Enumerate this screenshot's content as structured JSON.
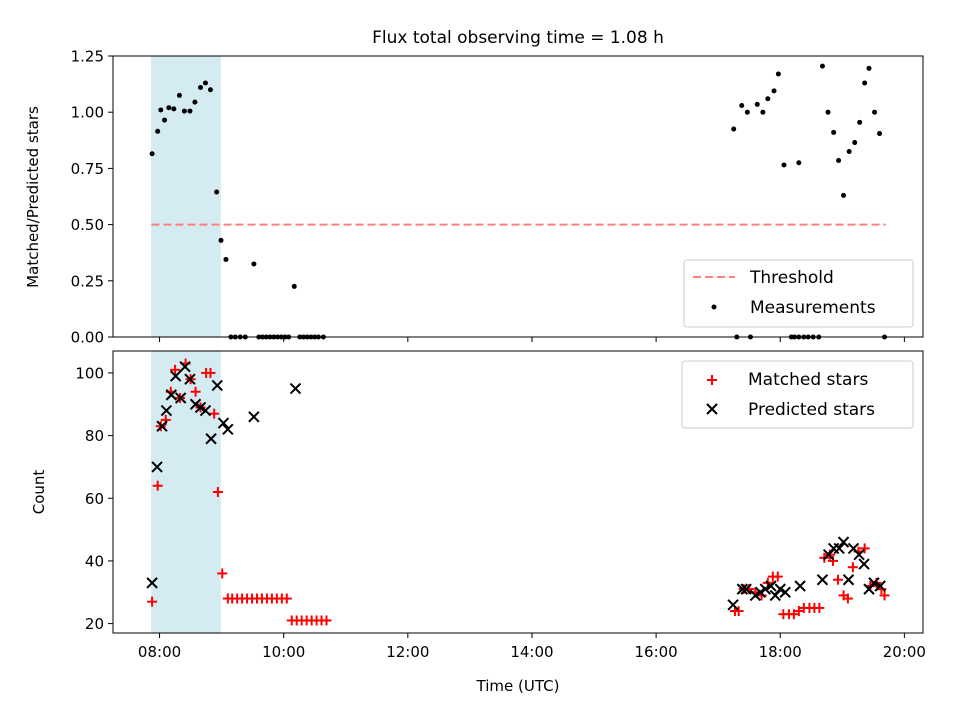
{
  "title": "Flux total observing time = 1.08 h",
  "colors": {
    "shade": "#add8e6",
    "threshold": "#ff7f7f",
    "matched": "#ff0000",
    "predicted": "#000000",
    "measurement": "#000000"
  },
  "chart_data": [
    {
      "type": "scatter",
      "panel": "top",
      "ylabel": "Matched/Predicted stars",
      "xlim_hours": [
        7.25,
        20.3
      ],
      "ylim": [
        0,
        1.25
      ],
      "yticks": [
        0,
        0.25,
        0.5,
        0.75,
        1.0,
        1.25
      ],
      "ytick_labels": [
        "0.00",
        "0.25",
        "0.50",
        "0.75",
        "1.00",
        "1.25"
      ],
      "xticks_hours": [
        8,
        10,
        12,
        14,
        16,
        18,
        20
      ],
      "shaded_span_hours": [
        7.87,
        8.98
      ],
      "legend_position": "lower right",
      "threshold": {
        "name": "Threshold",
        "y": 0.5,
        "x_range_hours": [
          7.87,
          19.7
        ]
      },
      "measurements": {
        "name": "Measurements",
        "points": [
          [
            7.88,
            0.815
          ],
          [
            7.97,
            0.915
          ],
          [
            8.02,
            1.01
          ],
          [
            8.08,
            0.965
          ],
          [
            8.15,
            1.02
          ],
          [
            8.23,
            1.015
          ],
          [
            8.32,
            1.075
          ],
          [
            8.4,
            1.005
          ],
          [
            8.49,
            1.005
          ],
          [
            8.57,
            1.045
          ],
          [
            8.66,
            1.11
          ],
          [
            8.74,
            1.13
          ],
          [
            8.82,
            1.1
          ],
          [
            8.92,
            0.645
          ],
          [
            8.99,
            0.43
          ],
          [
            9.07,
            0.345
          ],
          [
            9.15,
            0.0
          ],
          [
            9.22,
            0.0
          ],
          [
            9.3,
            0.0
          ],
          [
            9.38,
            0.0
          ],
          [
            9.52,
            0.325
          ],
          [
            9.6,
            0.0
          ],
          [
            9.66,
            0.0
          ],
          [
            9.72,
            0.0
          ],
          [
            9.78,
            0.0
          ],
          [
            9.84,
            0.0
          ],
          [
            9.9,
            0.0
          ],
          [
            9.96,
            0.0
          ],
          [
            10.02,
            0.0
          ],
          [
            10.08,
            0.0
          ],
          [
            10.17,
            0.225
          ],
          [
            10.26,
            0.0
          ],
          [
            10.32,
            0.0
          ],
          [
            10.38,
            0.0
          ],
          [
            10.44,
            0.0
          ],
          [
            10.5,
            0.0
          ],
          [
            10.56,
            0.0
          ],
          [
            10.64,
            0.0
          ],
          [
            17.25,
            0.925
          ],
          [
            17.3,
            0.0
          ],
          [
            17.38,
            1.03
          ],
          [
            17.47,
            1.0
          ],
          [
            17.52,
            0.0
          ],
          [
            17.63,
            1.035
          ],
          [
            17.72,
            1.0
          ],
          [
            17.8,
            1.06
          ],
          [
            17.9,
            1.095
          ],
          [
            17.97,
            1.17
          ],
          [
            18.06,
            0.765
          ],
          [
            18.18,
            0.0
          ],
          [
            18.23,
            0.0
          ],
          [
            18.3,
            0.0
          ],
          [
            18.3,
            0.775
          ],
          [
            18.38,
            0.0
          ],
          [
            18.45,
            0.0
          ],
          [
            18.53,
            0.0
          ],
          [
            18.62,
            0.0
          ],
          [
            18.68,
            1.205
          ],
          [
            18.77,
            1.0
          ],
          [
            18.86,
            0.91
          ],
          [
            18.94,
            0.785
          ],
          [
            19.02,
            0.63
          ],
          [
            19.11,
            0.825
          ],
          [
            19.2,
            0.865
          ],
          [
            19.28,
            0.955
          ],
          [
            19.36,
            1.13
          ],
          [
            19.43,
            1.195
          ],
          [
            19.52,
            1.0
          ],
          [
            19.6,
            0.905
          ],
          [
            19.68,
            0.0
          ]
        ]
      }
    },
    {
      "type": "scatter",
      "panel": "bottom",
      "ylabel": "Count",
      "xlabel": "Time (UTC)",
      "xlim_hours": [
        7.25,
        20.3
      ],
      "ylim": [
        17,
        107
      ],
      "yticks": [
        20,
        40,
        60,
        80,
        100
      ],
      "ytick_labels": [
        "20",
        "40",
        "60",
        "80",
        "100"
      ],
      "xticks_hours": [
        8,
        10,
        12,
        14,
        16,
        18,
        20
      ],
      "xtick_labels": [
        "08:00",
        "10:00",
        "12:00",
        "14:00",
        "16:00",
        "18:00",
        "20:00"
      ],
      "shaded_span_hours": [
        7.87,
        8.98
      ],
      "legend_position": "upper right",
      "series": [
        {
          "name": "Matched stars",
          "marker": "plus",
          "points": [
            [
              7.88,
              27
            ],
            [
              7.97,
              64
            ],
            [
              8.02,
              83
            ],
            [
              8.1,
              85
            ],
            [
              8.18,
              94
            ],
            [
              8.25,
              101
            ],
            [
              8.33,
              92
            ],
            [
              8.42,
              103
            ],
            [
              8.5,
              98
            ],
            [
              8.58,
              94
            ],
            [
              8.66,
              89
            ],
            [
              8.75,
              100
            ],
            [
              8.82,
              100
            ],
            [
              8.88,
              87
            ],
            [
              8.94,
              62
            ],
            [
              9.01,
              36
            ],
            [
              9.1,
              28
            ],
            [
              9.17,
              28
            ],
            [
              9.25,
              28
            ],
            [
              9.33,
              28
            ],
            [
              9.41,
              28
            ],
            [
              9.49,
              28
            ],
            [
              9.57,
              28
            ],
            [
              9.65,
              28
            ],
            [
              9.73,
              28
            ],
            [
              9.81,
              28
            ],
            [
              9.89,
              28
            ],
            [
              9.97,
              28
            ],
            [
              10.05,
              28
            ],
            [
              10.13,
              21
            ],
            [
              10.21,
              21
            ],
            [
              10.29,
              21
            ],
            [
              10.37,
              21
            ],
            [
              10.45,
              21
            ],
            [
              10.53,
              21
            ],
            [
              10.61,
              21
            ],
            [
              10.69,
              21
            ],
            [
              17.27,
              24
            ],
            [
              17.33,
              24
            ],
            [
              17.41,
              31
            ],
            [
              17.5,
              31
            ],
            [
              17.6,
              30
            ],
            [
              17.7,
              29
            ],
            [
              17.8,
              33
            ],
            [
              17.88,
              35
            ],
            [
              17.96,
              35
            ],
            [
              18.05,
              23
            ],
            [
              18.14,
              23
            ],
            [
              18.22,
              23
            ],
            [
              18.3,
              24
            ],
            [
              18.38,
              25
            ],
            [
              18.47,
              25
            ],
            [
              18.55,
              25
            ],
            [
              18.63,
              25
            ],
            [
              18.71,
              41
            ],
            [
              18.8,
              42
            ],
            [
              18.85,
              40
            ],
            [
              18.93,
              34
            ],
            [
              19.02,
              29
            ],
            [
              19.09,
              28
            ],
            [
              19.17,
              38
            ],
            [
              19.26,
              43
            ],
            [
              19.36,
              44
            ],
            [
              19.45,
              32
            ],
            [
              19.55,
              33
            ],
            [
              19.63,
              31
            ],
            [
              19.68,
              29
            ]
          ]
        },
        {
          "name": "Predicted stars",
          "marker": "x",
          "points": [
            [
              7.88,
              33
            ],
            [
              7.96,
              70
            ],
            [
              8.04,
              83
            ],
            [
              8.11,
              88
            ],
            [
              8.19,
              93
            ],
            [
              8.26,
              99
            ],
            [
              8.34,
              92
            ],
            [
              8.41,
              102
            ],
            [
              8.49,
              98
            ],
            [
              8.58,
              90
            ],
            [
              8.66,
              89
            ],
            [
              8.74,
              88
            ],
            [
              8.83,
              79
            ],
            [
              8.93,
              96
            ],
            [
              9.03,
              84
            ],
            [
              9.1,
              82
            ],
            [
              9.52,
              86
            ],
            [
              10.19,
              95
            ],
            [
              17.24,
              26
            ],
            [
              17.39,
              31
            ],
            [
              17.45,
              31
            ],
            [
              17.6,
              29
            ],
            [
              17.68,
              30
            ],
            [
              17.76,
              31
            ],
            [
              17.85,
              32
            ],
            [
              17.92,
              29
            ],
            [
              18.0,
              31
            ],
            [
              18.08,
              30
            ],
            [
              18.32,
              32
            ],
            [
              18.68,
              34
            ],
            [
              18.78,
              42
            ],
            [
              18.86,
              44
            ],
            [
              18.95,
              44
            ],
            [
              19.02,
              46
            ],
            [
              19.1,
              34
            ],
            [
              19.18,
              44
            ],
            [
              19.27,
              42
            ],
            [
              19.35,
              39
            ],
            [
              19.43,
              31
            ],
            [
              19.51,
              33
            ],
            [
              19.61,
              32
            ]
          ]
        }
      ]
    }
  ]
}
